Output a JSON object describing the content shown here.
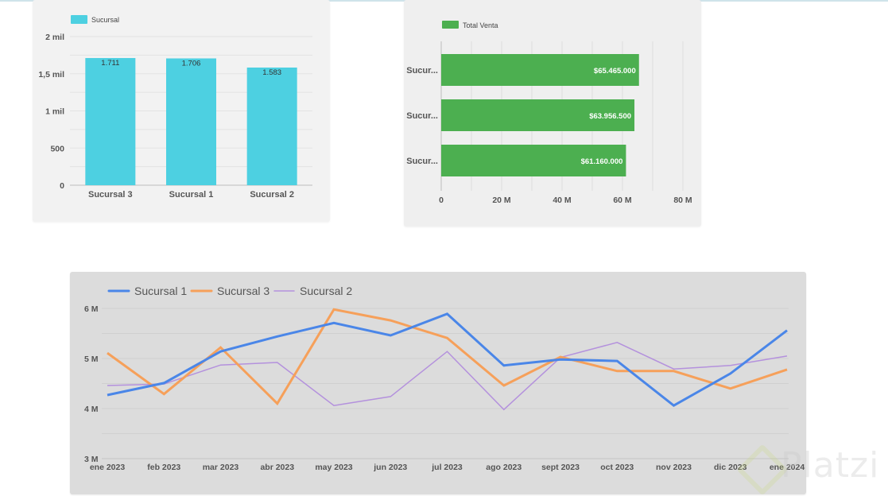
{
  "page": {
    "watermark": "Platzi"
  },
  "chart_data": [
    {
      "id": "cantidad",
      "type": "bar",
      "orientation": "vertical",
      "title": "",
      "legend": {
        "label": "Sucursal",
        "position": "top-left"
      },
      "categories": [
        "Sucursal 3",
        "Sucursal 1",
        "Sucursal 2"
      ],
      "values": [
        1711,
        1706,
        1583
      ],
      "data_labels": [
        "1.711",
        "1.706",
        "1.583"
      ],
      "ylim": [
        0,
        2000
      ],
      "yticks": [
        0,
        500,
        1000,
        1500,
        2000
      ],
      "ytick_labels": [
        "0",
        "500",
        "1 mil",
        "1,5 mil",
        "2 mil"
      ],
      "minor_grid_step": 250,
      "grid": true,
      "color": "#4dd0e1"
    },
    {
      "id": "venta",
      "type": "bar",
      "orientation": "horizontal",
      "title": "",
      "legend": {
        "label": "Total Venta",
        "position": "top-left"
      },
      "categories": [
        "Sucur...",
        "Sucur...",
        "Sucur..."
      ],
      "values": [
        65465000,
        63956500,
        61160000
      ],
      "data_labels": [
        "$65.465.000",
        "$63.956.500",
        "$61.160.000"
      ],
      "xlim": [
        0,
        80000000
      ],
      "xticks": [
        0,
        20000000,
        40000000,
        60000000,
        80000000
      ],
      "xtick_labels": [
        "0",
        "20 M",
        "40 M",
        "60 M",
        "80 M"
      ],
      "minor_grid_step": 10000000,
      "grid": true,
      "color": "#4caf50"
    },
    {
      "id": "ventas-mensuales",
      "type": "line",
      "title": "",
      "legend_position": "top-left",
      "x": [
        "ene 2023",
        "feb 2023",
        "mar 2023",
        "abr 2023",
        "may 2023",
        "jun 2023",
        "jul 2023",
        "ago 2023",
        "sept 2023",
        "oct 2023",
        "nov 2023",
        "dic 2023",
        "ene 2024"
      ],
      "ylim": [
        3000000,
        6000000
      ],
      "yticks": [
        3000000,
        4000000,
        5000000,
        6000000
      ],
      "ytick_labels": [
        "3 M",
        "4 M",
        "5 M",
        "6 M"
      ],
      "minor_grid_step": 500000,
      "grid": true,
      "series": [
        {
          "name": "Sucursal 1",
          "color": "#4a86e8",
          "values": [
            4270000,
            4510000,
            5140000,
            5440000,
            5710000,
            5460000,
            5890000,
            4860000,
            4980000,
            4950000,
            4060000,
            4700000,
            5560000
          ]
        },
        {
          "name": "Sucursal 3",
          "color": "#f6a05a",
          "values": [
            5110000,
            4290000,
            5220000,
            4100000,
            5980000,
            5760000,
            5410000,
            4460000,
            5030000,
            4750000,
            4750000,
            4400000,
            4780000
          ]
        },
        {
          "name": "Sucursal 2",
          "color": "#b491dd",
          "values": [
            4460000,
            4490000,
            4870000,
            4920000,
            4060000,
            4240000,
            5140000,
            3980000,
            5020000,
            5320000,
            4790000,
            4860000,
            5050000
          ]
        }
      ]
    }
  ]
}
